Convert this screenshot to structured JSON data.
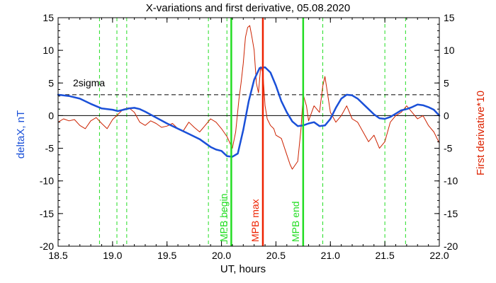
{
  "chart_data": {
    "type": "line",
    "title": "X-variations and first derivative, 05.08.2020",
    "xlabel": "UT, hours",
    "ylabel_left": "deltaX, nT",
    "ylabel_right": "First derivative*10",
    "xlim": [
      18.5,
      22.0
    ],
    "ylim_left": [
      -20,
      15
    ],
    "ylim_right": [
      -20,
      15
    ],
    "x_ticks": [
      "18.5",
      "19.0",
      "19.5",
      "20.0",
      "20.5",
      "21.0",
      "21.5",
      "22.0"
    ],
    "y_ticks": [
      "-20",
      "-15",
      "-10",
      "-5",
      "0",
      "5",
      "10",
      "15"
    ],
    "threshold": {
      "label": "2sigma",
      "value": 3.2
    },
    "zero_line": 0,
    "colors": {
      "deltaX": "#1a50d8",
      "derivative": "#cc2200",
      "green": "#22dd22",
      "red_marker": "#ee2200",
      "left_axis_label": "#1a50d8",
      "right_axis_label": "#dd2200"
    },
    "dashed_markers_x": [
      18.88,
      19.04,
      19.13,
      19.88,
      20.05,
      20.93,
      21.5,
      21.69
    ],
    "solid_markers": [
      {
        "x": 20.09,
        "label": "MPB begin",
        "color": "#22dd22"
      },
      {
        "x": 20.38,
        "label": "MPB max",
        "color": "#ee2200"
      },
      {
        "x": 20.75,
        "label": "MPB end",
        "color": "#22dd22"
      }
    ],
    "series": [
      {
        "name": "deltaX, nT",
        "x": [
          18.5,
          18.6,
          18.7,
          18.8,
          18.9,
          19.0,
          19.05,
          19.1,
          19.15,
          19.2,
          19.25,
          19.3,
          19.4,
          19.5,
          19.6,
          19.7,
          19.8,
          19.85,
          19.9,
          19.95,
          20.0,
          20.05,
          20.1,
          20.15,
          20.2,
          20.25,
          20.3,
          20.35,
          20.4,
          20.45,
          20.5,
          20.55,
          20.6,
          20.65,
          20.7,
          20.75,
          20.8,
          20.85,
          20.9,
          20.95,
          21.0,
          21.05,
          21.1,
          21.15,
          21.2,
          21.25,
          21.3,
          21.35,
          21.4,
          21.45,
          21.5,
          21.55,
          21.6,
          21.65,
          21.7,
          21.75,
          21.8,
          21.85,
          21.9,
          21.95,
          22.0
        ],
        "y": [
          3.2,
          3.0,
          2.6,
          1.8,
          1.1,
          0.9,
          0.7,
          0.9,
          1.1,
          1.2,
          1.0,
          0.6,
          -0.3,
          -1.2,
          -2.0,
          -2.8,
          -3.6,
          -4.2,
          -4.8,
          -5.2,
          -5.4,
          -6.2,
          -6.3,
          -5.8,
          -2.2,
          2.2,
          5.5,
          7.3,
          7.4,
          6.6,
          4.6,
          2.2,
          0.5,
          -0.9,
          -1.6,
          -1.5,
          -1.2,
          -1.0,
          -1.6,
          -1.5,
          -0.5,
          1.2,
          2.6,
          3.2,
          3.1,
          2.6,
          1.8,
          1.0,
          0.2,
          -0.4,
          -0.5,
          -0.2,
          0.3,
          0.8,
          1.0,
          1.3,
          1.7,
          1.6,
          1.3,
          0.9,
          0.0
        ]
      },
      {
        "name": "First derivative*10",
        "x": [
          18.5,
          18.55,
          18.6,
          18.65,
          18.7,
          18.75,
          18.8,
          18.85,
          18.9,
          18.95,
          19.0,
          19.05,
          19.1,
          19.15,
          19.2,
          19.25,
          19.3,
          19.35,
          19.4,
          19.45,
          19.5,
          19.55,
          19.6,
          19.65,
          19.7,
          19.75,
          19.8,
          19.85,
          19.9,
          19.95,
          20.0,
          20.05,
          20.1,
          20.13,
          20.16,
          20.18,
          20.2,
          20.22,
          20.24,
          20.26,
          20.28,
          20.3,
          20.32,
          20.34,
          20.36,
          20.38,
          20.4,
          20.42,
          20.45,
          20.48,
          20.5,
          20.55,
          20.6,
          20.63,
          20.65,
          20.7,
          20.73,
          20.75,
          20.78,
          20.8,
          20.85,
          20.9,
          20.93,
          20.95,
          21.0,
          21.05,
          21.1,
          21.15,
          21.2,
          21.25,
          21.3,
          21.35,
          21.4,
          21.45,
          21.5,
          21.55,
          21.6,
          21.65,
          21.7,
          21.75,
          21.8,
          21.85,
          21.9,
          21.95,
          22.0
        ],
        "y": [
          -1.0,
          -0.5,
          -0.8,
          -0.6,
          -1.5,
          -2.0,
          -0.8,
          -0.3,
          -1.2,
          -2.0,
          -0.6,
          0.2,
          1.0,
          1.2,
          0.5,
          -1.0,
          -1.5,
          -0.8,
          -1.2,
          -1.8,
          -1.6,
          -1.2,
          -2.0,
          -2.3,
          -1.0,
          -1.8,
          -2.5,
          -1.5,
          -0.5,
          -1.0,
          -2.0,
          -3.2,
          -5.0,
          -2.5,
          2.5,
          5.0,
          8.0,
          12.0,
          13.5,
          13.8,
          12.0,
          10.0,
          5.0,
          3.5,
          7.5,
          6.5,
          1.5,
          -0.5,
          -1.5,
          -2.0,
          -3.0,
          -3.5,
          -6.0,
          -7.5,
          -8.2,
          -7.0,
          -2.0,
          3.2,
          1.5,
          -0.8,
          1.5,
          0.5,
          4.5,
          6.0,
          0.5,
          -1.0,
          0.0,
          1.5,
          -0.5,
          -1.0,
          -2.5,
          -4.0,
          -3.0,
          -5.0,
          -4.0,
          -1.0,
          0.0,
          0.5,
          1.5,
          0.5,
          -0.5,
          0.0,
          -1.5,
          -2.5,
          -4.2
        ]
      }
    ]
  }
}
